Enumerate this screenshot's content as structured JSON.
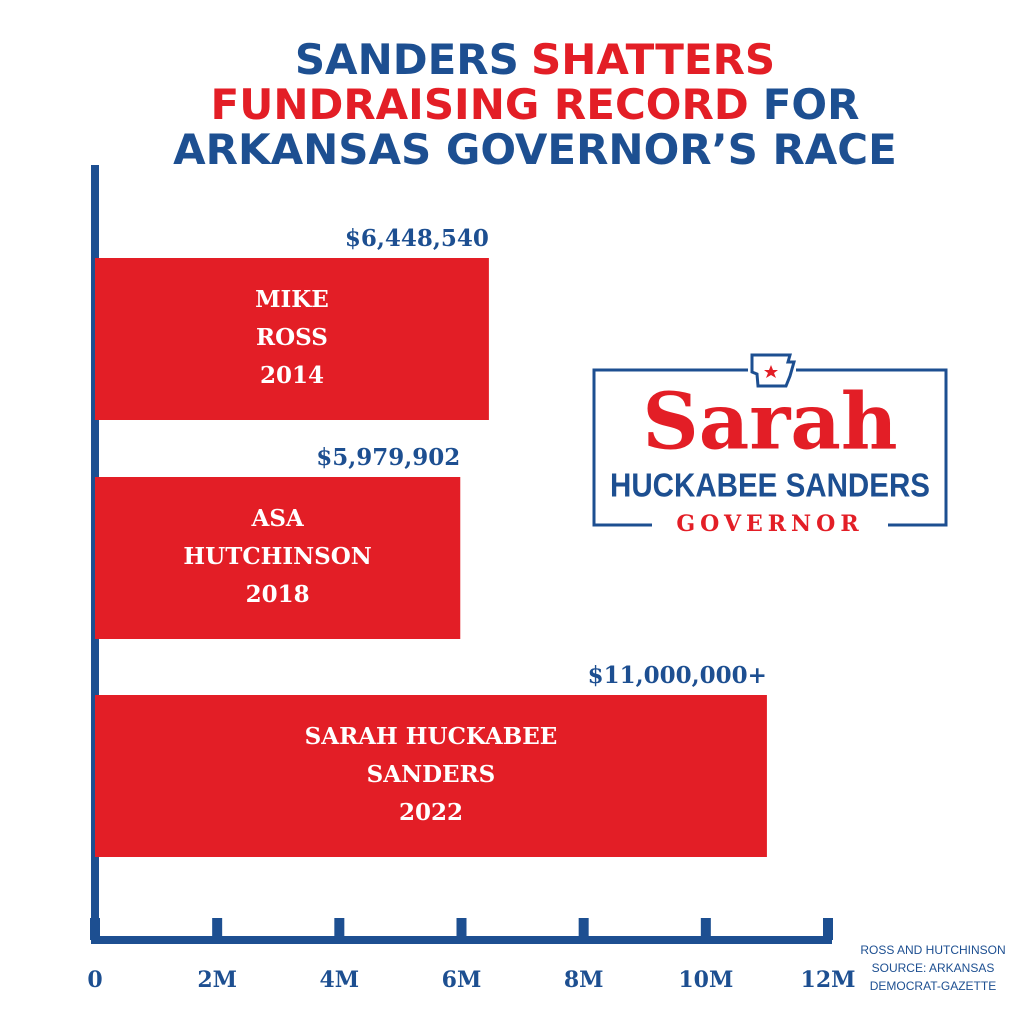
{
  "chart_data": {
    "type": "bar",
    "orientation": "horizontal",
    "title": [
      [
        {
          "text": "SANDERS",
          "color": "#1d4f91"
        },
        {
          "text": "SHATTERS",
          "color": "#e31e26"
        }
      ],
      [
        {
          "text": "FUNDRAISING RECORD",
          "color": "#e31e26"
        },
        {
          "text": "FOR",
          "color": "#1d4f91"
        }
      ],
      [
        {
          "text": "ARKANSAS GOVERNOR’S RACE",
          "color": "#1d4f91"
        }
      ]
    ],
    "categories": [
      [
        "MIKE",
        "ROSS",
        "2014"
      ],
      [
        "ASA",
        "HUTCHINSON",
        "2018"
      ],
      [
        "SARAH HUCKABEE",
        "SANDERS",
        "2022"
      ]
    ],
    "values": [
      6448540,
      5979902,
      11000000
    ],
    "value_labels": [
      "$6,448,540",
      "$5,979,902",
      "$11,000,000+"
    ],
    "color": "#e31e26",
    "axis_color": "#1d4f91",
    "xlim": [
      0,
      12000000
    ],
    "xticks": [
      0,
      {
        "value": 2000000,
        "label": "2M"
      },
      {
        "value": 4000000,
        "label": "4M"
      },
      {
        "value": 6000000,
        "label": "6M"
      },
      {
        "value": 8000000,
        "label": "8M"
      },
      {
        "value": 10000000,
        "label": "10M"
      },
      {
        "value": 12000000,
        "label": "12M"
      }
    ],
    "grid": false,
    "source": [
      "ROSS AND HUTCHINSON",
      "SOURCE: ARKANSAS",
      "DEMOCRAT-GAZETTE"
    ]
  },
  "logo": {
    "name": "Sarah",
    "subname": "HUCKABEE SANDERS",
    "office": "GOVERNOR"
  }
}
